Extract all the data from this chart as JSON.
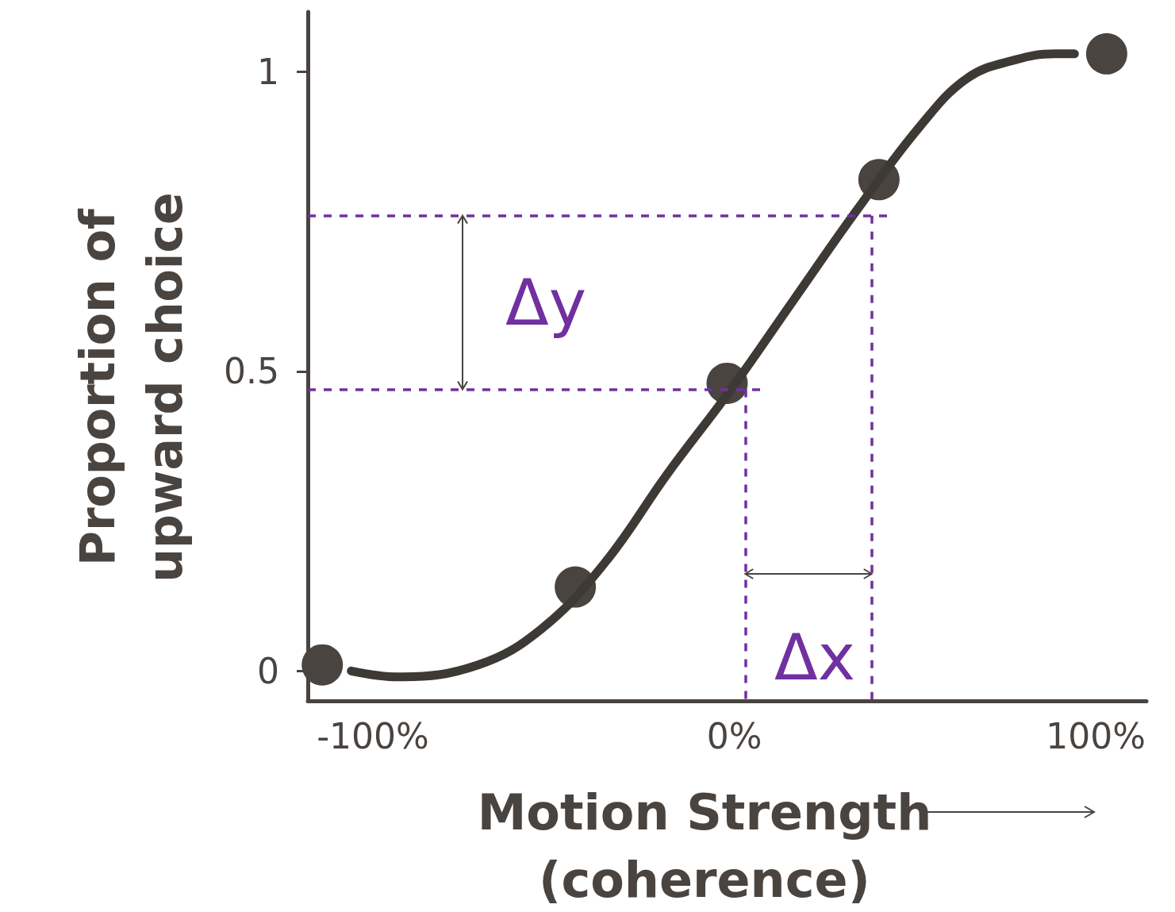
{
  "chart_data": {
    "type": "line",
    "xlabel": "Motion Strength\n(coherence)",
    "ylabel": "Proportion of\nupward choice",
    "xlim": [
      -118,
      114
    ],
    "ylim": [
      -0.05,
      1.1
    ],
    "xticks": [
      {
        "value": -100,
        "label": "-100%"
      },
      {
        "value": 0,
        "label": "0%"
      },
      {
        "value": 100,
        "label": "100%"
      }
    ],
    "yticks": [
      0,
      0.5,
      1
    ],
    "grid": false,
    "series": [
      {
        "type": "line",
        "color": "#3d3935",
        "marker": "none",
        "x": [
          -106,
          -92.7,
          -70.9,
          -53.4,
          -35.9,
          -18.4,
          -0.9,
          16.5,
          34.0,
          51.5,
          64.6,
          77.7,
          88.6,
          94.1
        ],
        "values": [
          0.0,
          -0.01,
          0.01,
          0.07,
          0.18,
          0.33,
          0.47,
          0.62,
          0.77,
          0.91,
          0.99,
          1.02,
          1.03,
          1.03
        ]
      },
      {
        "type": "scatter",
        "color": "#4a4441",
        "marker": "circle",
        "x": [
          -114,
          -44,
          -2,
          40,
          103
        ],
        "values": [
          0.01,
          0.14,
          0.48,
          0.82,
          1.03
        ]
      }
    ],
    "ref_lines": [
      {
        "axis": "y",
        "value": 0.76,
        "color": "#7030a0",
        "line_style": "dashed"
      },
      {
        "axis": "y",
        "value": 0.47,
        "color": "#7030a0",
        "line_style": "dashed"
      },
      {
        "axis": "x",
        "value": 3,
        "color": "#7030a0",
        "line_style": "dashed"
      },
      {
        "axis": "x",
        "value": 38,
        "color": "#7030a0",
        "line_style": "dashed"
      }
    ],
    "annotations": [
      "Δy",
      "Δx"
    ]
  }
}
